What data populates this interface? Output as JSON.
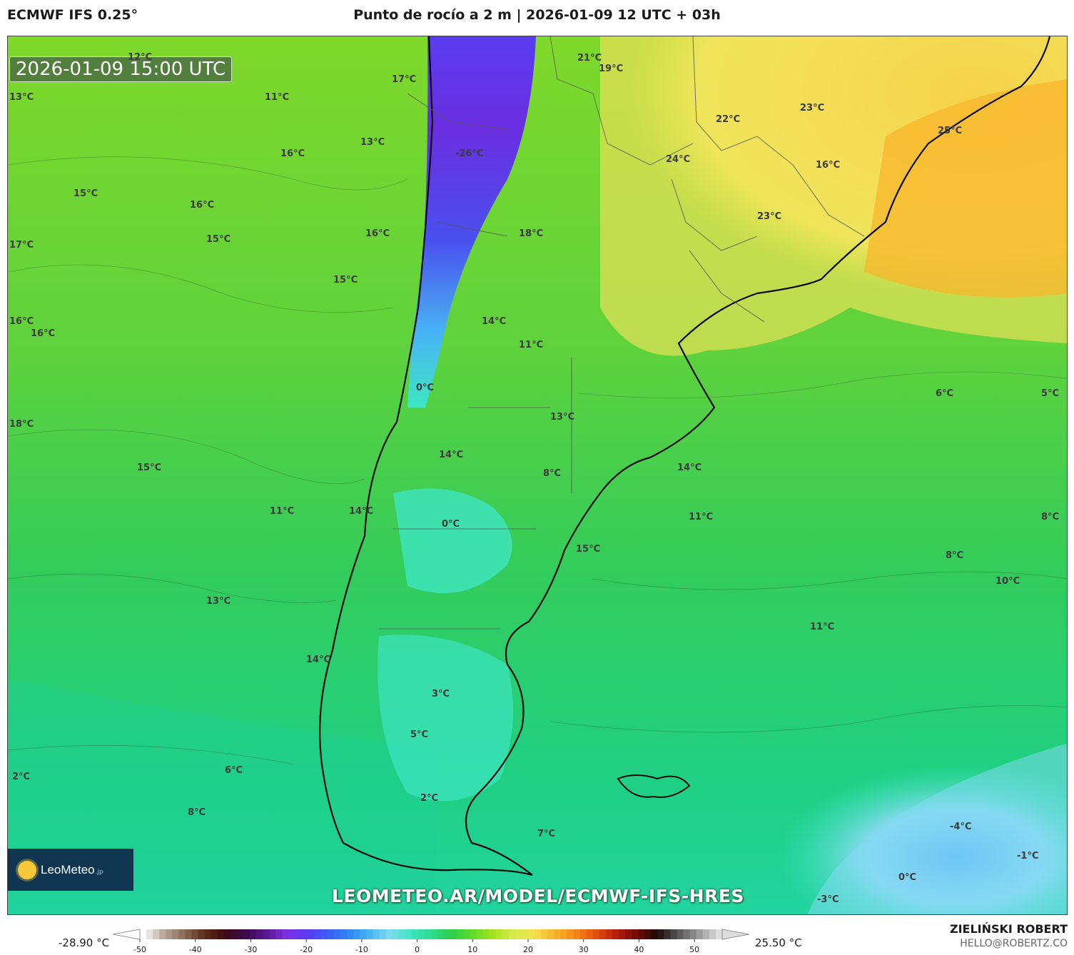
{
  "header": {
    "model": "ECMWF IFS 0.25°",
    "title": "Punto de rocío a 2 m | 2026-01-09 12 UTC + 03h"
  },
  "map": {
    "valid_time": "2026-01-09 15:00 UTC",
    "labels": [
      {
        "text": "12°C"
      },
      {
        "text": "13°C"
      },
      {
        "text": "11°C"
      },
      {
        "text": "17°C"
      },
      {
        "text": "21°C"
      },
      {
        "text": "19°C"
      },
      {
        "text": "22°C"
      },
      {
        "text": "23°C"
      },
      {
        "text": "25°C"
      },
      {
        "text": "13°C"
      },
      {
        "text": "16°C"
      },
      {
        "text": "-26°C"
      },
      {
        "text": "24°C"
      },
      {
        "text": "16°C"
      },
      {
        "text": "15°C"
      },
      {
        "text": "16°C"
      },
      {
        "text": "15°C"
      },
      {
        "text": "16°C"
      },
      {
        "text": "18°C"
      },
      {
        "text": "23°C"
      },
      {
        "text": "17°C"
      },
      {
        "text": "15°C"
      },
      {
        "text": "16°C"
      },
      {
        "text": "16°C"
      },
      {
        "text": "14°C"
      },
      {
        "text": "11°C"
      },
      {
        "text": "0°C"
      },
      {
        "text": "6°C"
      },
      {
        "text": "5°C"
      },
      {
        "text": "18°C"
      },
      {
        "text": "13°C"
      },
      {
        "text": "14°C"
      },
      {
        "text": "15°C"
      },
      {
        "text": "8°C"
      },
      {
        "text": "14°C"
      },
      {
        "text": "11°C"
      },
      {
        "text": "14°C"
      },
      {
        "text": "11°C"
      },
      {
        "text": "8°C"
      },
      {
        "text": "0°C"
      },
      {
        "text": "15°C"
      },
      {
        "text": "8°C"
      },
      {
        "text": "10°C"
      },
      {
        "text": "13°C"
      },
      {
        "text": "11°C"
      },
      {
        "text": "14°C"
      },
      {
        "text": "3°C"
      },
      {
        "text": "5°C"
      },
      {
        "text": "2°C"
      },
      {
        "text": "6°C"
      },
      {
        "text": "2°C"
      },
      {
        "text": "8°C"
      },
      {
        "text": "7°C"
      },
      {
        "text": "-4°C"
      },
      {
        "text": "-1°C"
      },
      {
        "text": "0°C"
      },
      {
        "text": "-3°C"
      }
    ]
  },
  "brand": {
    "name": "LeoMeteo",
    "tld": ".jp",
    "url": "LEOMETEO.AR/MODEL/ECMWF-IFS-HRES"
  },
  "legend": {
    "min_label": "-28.90 °C",
    "max_label": "25.50 °C",
    "ticks": [
      "-50",
      "-40",
      "-30",
      "-20",
      "-10",
      "0",
      "10",
      "20",
      "30",
      "40",
      "50"
    ],
    "tick_values": [
      -50,
      -40,
      -30,
      -20,
      -10,
      0,
      10,
      20,
      30,
      40,
      50
    ],
    "range": [
      -50,
      55
    ],
    "colors": [
      "#ffffff",
      "#b8a79a",
      "#8a6a55",
      "#5b2d18",
      "#3d0a12",
      "#3c0a50",
      "#5a1890",
      "#7c32e6",
      "#5a3cf0",
      "#3b5ef5",
      "#2f86f2",
      "#48b4f4",
      "#7fdbf0",
      "#3ee6c2",
      "#2edc8c",
      "#2ccf4a",
      "#5fdc2a",
      "#a6e21e",
      "#d6ec4a",
      "#f5e04e",
      "#f8b52c",
      "#f48a14",
      "#e4500e",
      "#b81e0a",
      "#700a06",
      "#1e0a0a",
      "#555555",
      "#999999",
      "#dddddd"
    ]
  },
  "author": {
    "name": "ZIELIŃSKI ROBERT",
    "email": "HELLO@ROBERTZ.CO"
  }
}
